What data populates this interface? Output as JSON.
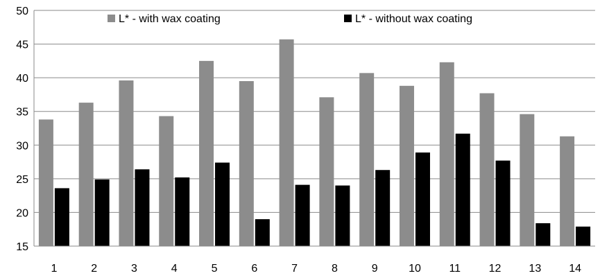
{
  "chart_data": {
    "type": "bar",
    "categories": [
      "1",
      "2",
      "3",
      "4",
      "5",
      "6",
      "7",
      "8",
      "9",
      "10",
      "11",
      "12",
      "13",
      "14"
    ],
    "series": [
      {
        "name": "L* - with wax coating",
        "color": "#8c8c8c",
        "values": [
          33.8,
          36.3,
          39.6,
          34.3,
          42.5,
          39.5,
          45.7,
          37.1,
          40.7,
          38.8,
          42.3,
          37.7,
          34.6,
          31.3
        ]
      },
      {
        "name": "L* - without wax coating",
        "color": "#000000",
        "values": [
          23.6,
          24.9,
          26.4,
          25.2,
          27.4,
          19.0,
          24.1,
          24.0,
          26.3,
          28.9,
          31.7,
          27.7,
          18.4,
          17.9
        ]
      }
    ],
    "yticks": [
      15,
      20,
      25,
      30,
      35,
      40,
      45,
      50
    ],
    "ylim": [
      15,
      50
    ],
    "grid": true,
    "legend": "top"
  }
}
